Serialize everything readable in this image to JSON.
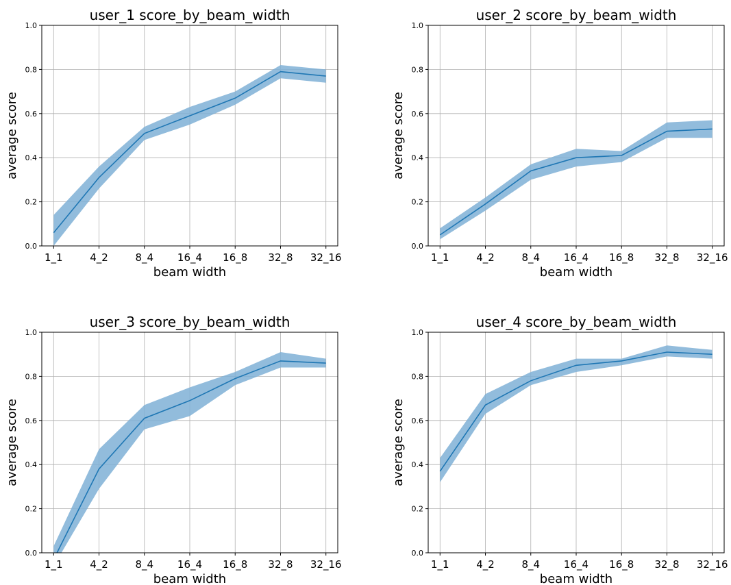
{
  "chart_data": [
    {
      "type": "line",
      "title": "user_1 score_by_beam_width",
      "xlabel": "beam width",
      "ylabel": "average score",
      "categories": [
        "1_1",
        "4_2",
        "8_4",
        "16_4",
        "16_8",
        "32_8",
        "32_16"
      ],
      "ylim": [
        0,
        1
      ],
      "yticks": [
        "0.0",
        "0.2",
        "0.4",
        "0.6",
        "0.8",
        "1.0"
      ],
      "grid": true,
      "series": [
        {
          "values": [
            0.06,
            0.31,
            0.51,
            0.59,
            0.67,
            0.79,
            0.77
          ],
          "band_lower": [
            0.0,
            0.26,
            0.48,
            0.55,
            0.64,
            0.76,
            0.74
          ],
          "band_upper": [
            0.14,
            0.36,
            0.54,
            0.63,
            0.7,
            0.82,
            0.8
          ]
        }
      ]
    },
    {
      "type": "line",
      "title": "user_2 score_by_beam_width",
      "xlabel": "beam width",
      "ylabel": "average score",
      "categories": [
        "1_1",
        "4_2",
        "8_4",
        "16_4",
        "16_8",
        "32_8",
        "32_16"
      ],
      "ylim": [
        0,
        1
      ],
      "yticks": [
        "0.0",
        "0.2",
        "0.4",
        "0.6",
        "0.8",
        "1.0"
      ],
      "grid": true,
      "series": [
        {
          "values": [
            0.05,
            0.19,
            0.34,
            0.4,
            0.41,
            0.52,
            0.53
          ],
          "band_lower": [
            0.03,
            0.16,
            0.3,
            0.36,
            0.38,
            0.49,
            0.49
          ],
          "band_upper": [
            0.08,
            0.22,
            0.37,
            0.44,
            0.43,
            0.56,
            0.57
          ]
        }
      ]
    },
    {
      "type": "line",
      "title": "user_3 score_by_beam_width",
      "xlabel": "beam width",
      "ylabel": "average score",
      "categories": [
        "1_1",
        "4_2",
        "8_4",
        "16_4",
        "16_8",
        "32_8",
        "32_16"
      ],
      "ylim": [
        0,
        1
      ],
      "yticks": [
        "0.0",
        "0.2",
        "0.4",
        "0.6",
        "0.8",
        "1.0"
      ],
      "grid": true,
      "series": [
        {
          "values": [
            -0.03,
            0.38,
            0.61,
            0.69,
            0.79,
            0.87,
            0.86
          ],
          "band_lower": [
            -0.06,
            0.29,
            0.56,
            0.62,
            0.76,
            0.84,
            0.84
          ],
          "band_upper": [
            0.03,
            0.47,
            0.67,
            0.75,
            0.82,
            0.91,
            0.88
          ]
        }
      ]
    },
    {
      "type": "line",
      "title": "user_4 score_by_beam_width",
      "xlabel": "beam width",
      "ylabel": "average score",
      "categories": [
        "1_1",
        "4_2",
        "8_4",
        "16_4",
        "16_8",
        "32_8",
        "32_16"
      ],
      "ylim": [
        0,
        1
      ],
      "yticks": [
        "0.0",
        "0.2",
        "0.4",
        "0.6",
        "0.8",
        "1.0"
      ],
      "grid": true,
      "series": [
        {
          "values": [
            0.37,
            0.67,
            0.78,
            0.85,
            0.87,
            0.91,
            0.9
          ],
          "band_lower": [
            0.32,
            0.63,
            0.76,
            0.82,
            0.85,
            0.89,
            0.88
          ],
          "band_upper": [
            0.43,
            0.72,
            0.82,
            0.88,
            0.88,
            0.94,
            0.92
          ]
        }
      ]
    }
  ],
  "colors": {
    "line": "#1f77b4",
    "band": "#7fb0d6",
    "grid": "#b0b0b0",
    "axis": "#000000"
  }
}
